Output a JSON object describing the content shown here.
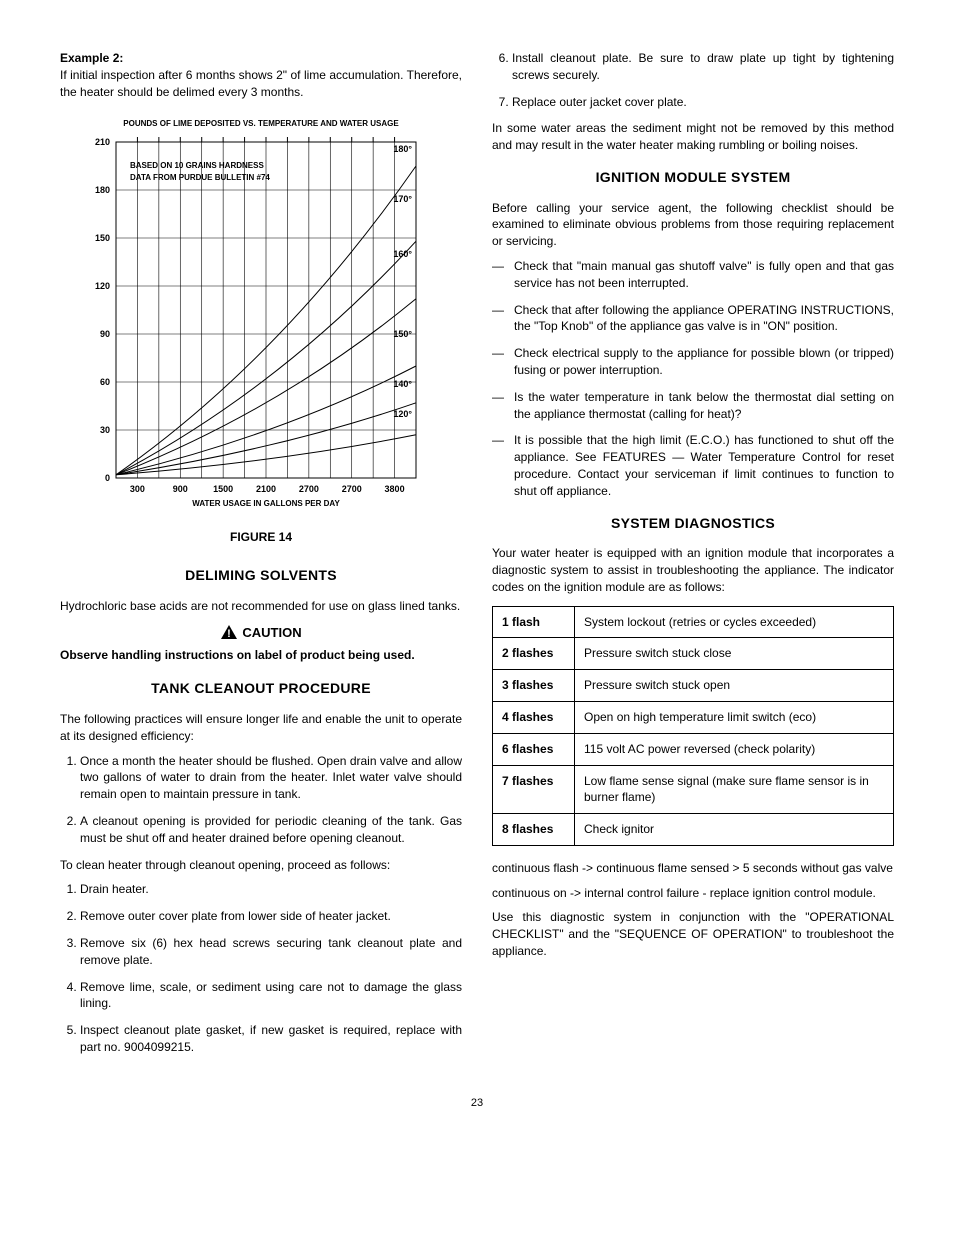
{
  "left": {
    "example_head": "Example 2:",
    "example_body": "If initial inspection after 6 months shows 2\" of lime accumulation. Therefore, the heater should be delimed every 3 months.",
    "chart": {
      "title": "POUNDS OF LIME DEPOSITED VS. TEMPERATURE AND WATER USAGE",
      "note1": "BASED ON 10 GRAINS HARDNESS",
      "note2": "DATA FROM PURDUE BULLETIN #74",
      "y_ticks": [
        0,
        30,
        60,
        90,
        120,
        150,
        180,
        210
      ],
      "x_ticks": [
        300,
        900,
        1500,
        2100,
        2700,
        2700,
        3800
      ],
      "x_label": "WATER USAGE IN GALLONS PER DAY",
      "curves": [
        "120°",
        "140°",
        "150°",
        "160°",
        "170°",
        "180°"
      ],
      "axis_color": "#000000",
      "grid_color": "#000000",
      "bg": "#ffffff",
      "title_fontsize": 8,
      "label_fontsize": 8,
      "tick_fontsize": 9
    },
    "figure_label": "FIGURE 14",
    "deliming_heading": "DELIMING SOLVENTS",
    "deliming_para": "Hydrochloric base acids are not recommended for use on glass lined tanks.",
    "caution_label": "CAUTION",
    "caution_text": "Observe handling instructions on label of product being used.",
    "tank_heading": "TANK CLEANOUT PROCEDURE",
    "tank_intro": "The following practices will ensure longer life and enable the unit to operate at its designed efficiency:",
    "tank_list1": [
      "Once a month the heater should be flushed. Open drain valve and allow two gallons of water to drain from the heater. Inlet water valve should remain open to maintain pressure in tank.",
      "A cleanout opening is provided for periodic cleaning of the tank. Gas must be shut off and heater drained before opening cleanout."
    ],
    "tank_mid": "To clean heater through cleanout opening, proceed as follows:",
    "tank_list2": [
      "Drain heater.",
      "Remove outer cover plate from lower side of heater jacket.",
      "Remove six (6) hex head screws securing tank cleanout plate and remove plate.",
      "Remove lime, scale, or sediment using care not to damage the glass lining.",
      "Inspect cleanout plate gasket, if new gasket is required, replace with part no. 9004099215."
    ]
  },
  "right": {
    "tank_list2_cont": [
      "Install cleanout plate.  Be sure to draw plate up tight by tightening screws securely.",
      "Replace outer jacket cover plate."
    ],
    "sediment_para": "In some water areas the sediment might not be removed by this method and may result in the water heater making rumbling or boiling noises.",
    "ignition_heading": "IGNITION MODULE SYSTEM",
    "ignition_intro": "Before calling your service agent, the following checklist should be examined to eliminate obvious problems from those requiring replacement or servicing.",
    "ignition_checks": [
      "Check that \"main manual gas shutoff valve\" is fully open and that gas service has not been interrupted.",
      "Check that after following the appliance OPERATING INSTRUCTIONS, the \"Top Knob\" of the appliance gas valve is in \"ON\" position.",
      "Check electrical supply to the appliance for possible blown (or tripped) fusing or power interruption.",
      "Is the water temperature in tank below the thermostat dial setting on the appliance thermostat (calling for heat)?",
      "It is possible that the high limit (E.C.O.) has functioned to shut off the appliance.  See FEATURES — Water Temperature Control for reset procedure.  Contact your serviceman if limit continues to function to shut off appliance."
    ],
    "diag_heading": "SYSTEM DIAGNOSTICS",
    "diag_intro": "Your water heater is equipped with an ignition module that incorporates a diagnostic system to assist in troubleshooting the appliance.  The indicator codes on the ignition module are as follows:",
    "diag_table": [
      [
        "1 flash",
        "System lockout (retries or cycles exceeded)"
      ],
      [
        "2 flashes",
        "Pressure switch stuck close"
      ],
      [
        "3 flashes",
        "Pressure switch stuck open"
      ],
      [
        "4 flashes",
        "Open on high temperature limit switch (eco)"
      ],
      [
        "6 flashes",
        "115 volt AC power reversed (check polarity)"
      ],
      [
        "7 flashes",
        "Low flame sense signal (make sure flame sensor is in burner flame)"
      ],
      [
        "8 flashes",
        "Check ignitor"
      ]
    ],
    "cont_flash": "continuous flash -> continuous flame sensed > 5 seconds without gas valve",
    "cont_on": "continuous on -> internal control failure - replace ignition control module.",
    "diag_outro": "Use this diagnostic system in conjunction with the \"OPERATIONAL CHECKLIST\" and the \"SEQUENCE OF OPERATION\" to troubleshoot the appliance."
  },
  "page_number": "23"
}
